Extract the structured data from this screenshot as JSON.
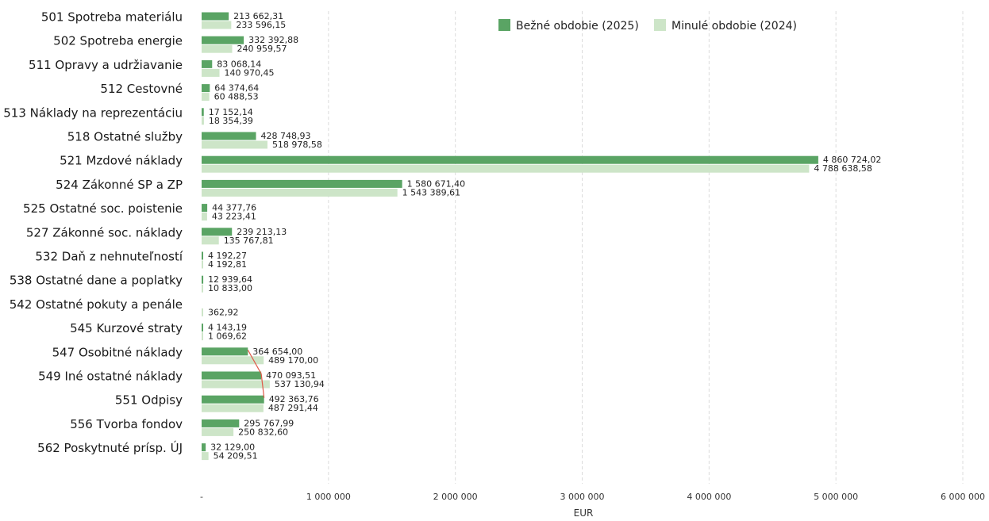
{
  "chart_data": {
    "type": "bar",
    "orientation": "horizontal",
    "categories": [
      "501 Spotreba materiálu",
      "502 Spotreba energie",
      "511 Opravy a udržiavanie",
      "512 Cestovné",
      "513 Náklady na reprezentáciu",
      "518 Ostatné služby",
      "521 Mzdové náklady",
      "524 Zákonné SP a ZP",
      "525 Ostatné soc. poistenie",
      "527 Zákonné soc. náklady",
      "532 Daň z nehnuteľností",
      "538 Ostatné dane a poplatky",
      "542 Ostatné pokuty a penále",
      "545 Kurzové straty",
      "547 Osobitné náklady",
      "549 Iné ostatné náklady",
      "551 Odpisy",
      "556 Tvorba fondov",
      "562 Poskytnuté prísp. ÚJ"
    ],
    "series": [
      {
        "name": "Bežné obdobie (2025)",
        "color": "#5aa464",
        "values": [
          213662.31,
          332392.88,
          83068.14,
          64374.64,
          17152.14,
          428748.93,
          4860724.02,
          1580671.4,
          44377.76,
          239213.13,
          4192.27,
          12939.64,
          0,
          4143.19,
          364654.0,
          470093.51,
          492363.76,
          295767.99,
          32129.0
        ],
        "labels": [
          "213 662,31",
          "332 392,88",
          "83 068,14",
          "64 374,64",
          "17 152,14",
          "428 748,93",
          "4 860 724,02",
          "1 580 671,40",
          "44 377,76",
          "239 213,13",
          "4 192,27",
          "12 939,64",
          "",
          "4 143,19",
          "364 654,00",
          "470 093,51",
          "492 363,76",
          "295 767,99",
          "32 129,00"
        ]
      },
      {
        "name": "Minulé obdobie (2024)",
        "color": "#cde5c8",
        "values": [
          233596.15,
          240959.57,
          140970.45,
          60488.53,
          18354.39,
          518978.58,
          4788638.58,
          1543389.61,
          43223.41,
          135767.81,
          4192.81,
          10833.0,
          362.92,
          1069.62,
          489170.0,
          537130.94,
          487291.44,
          250832.6,
          54209.51
        ],
        "labels": [
          "233 596,15",
          "240 959,57",
          "140 970,45",
          "60 488,53",
          "18 354,39",
          "518 978,58",
          "4 788 638,58",
          "1 543 389,61",
          "43 223,41",
          "135 767,81",
          "4 192,81",
          "10 833,00",
          "362,92",
          "1 069,62",
          "489 170,00",
          "537 130,94",
          "487 291,44",
          "250 832,60",
          "54 209,51"
        ]
      }
    ],
    "xlim": [
      0,
      6000000
    ],
    "x_ticks": [
      0,
      1000000,
      2000000,
      3000000,
      4000000,
      5000000,
      6000000
    ],
    "x_tick_labels": [
      "-",
      "1 000 000",
      "2 000 000",
      "3 000 000",
      "4 000 000",
      "5 000 000",
      "6 000 000"
    ],
    "xlabel": "EUR",
    "ylabel": "",
    "title": "",
    "legend_position": "top-center",
    "grid": "vertical dashed",
    "gridline_color": "#dcdcdc",
    "connector_line_color": "#e05a4a"
  }
}
